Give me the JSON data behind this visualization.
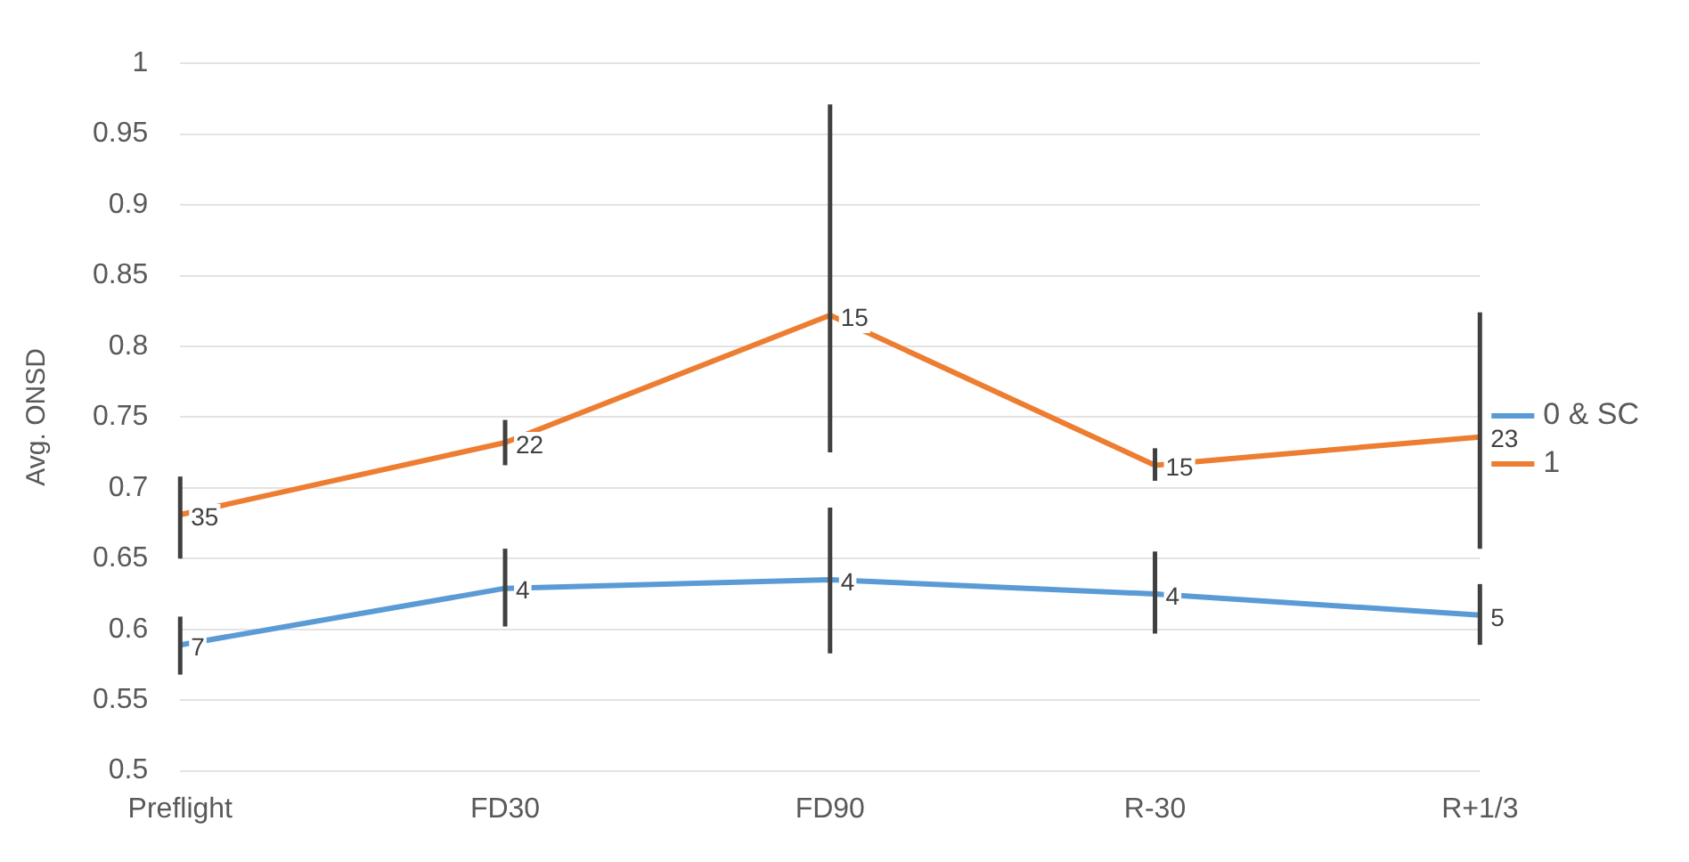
{
  "chart_data": {
    "type": "line",
    "ylabel": "Avg. ONSD",
    "categories": [
      "Preflight",
      "FD30",
      "FD90",
      "R-30",
      "R+1/3"
    ],
    "series": [
      {
        "name": "0 & SC",
        "color": "#5b9bd5",
        "values": [
          0.589,
          0.629,
          0.635,
          0.625,
          0.61
        ],
        "errors": [
          [
            0.568,
            0.609
          ],
          [
            0.602,
            0.657
          ],
          [
            0.583,
            0.686
          ],
          [
            0.597,
            0.655
          ],
          [
            0.589,
            0.632
          ]
        ]
      },
      {
        "name": "1",
        "color": "#ed7d31",
        "values": [
          0.681,
          0.732,
          0.822,
          0.716,
          0.736
        ],
        "errors": [
          [
            0.65,
            0.708
          ],
          [
            0.716,
            0.748
          ],
          [
            0.725,
            0.971
          ],
          [
            0.705,
            0.728
          ],
          [
            0.657,
            0.824
          ]
        ]
      }
    ],
    "annotations": [
      {
        "text": "7",
        "x": "Preflight",
        "y": 0.589
      },
      {
        "text": "4",
        "x": "FD30",
        "y": 0.629
      },
      {
        "text": "4",
        "x": "FD90",
        "y": 0.635
      },
      {
        "text": "4",
        "x": "R-30",
        "y": 0.625
      },
      {
        "text": "5",
        "x": "R+1/3",
        "y": 0.61
      },
      {
        "text": "35",
        "x": "Preflight",
        "y": 0.681
      },
      {
        "text": "22",
        "x": "FD30",
        "y": 0.732
      },
      {
        "text": "15",
        "x": "FD90",
        "y": 0.822
      },
      {
        "text": "15",
        "x": "R-30",
        "y": 0.716
      },
      {
        "text": "23",
        "x": "R+1/3",
        "y": 0.736
      }
    ],
    "ylim": [
      0.5,
      1
    ],
    "yticks": [
      0.5,
      0.55,
      0.6,
      0.65,
      0.7,
      0.75,
      0.8,
      0.85,
      0.9,
      0.95,
      1
    ],
    "grid": "y",
    "legend": "right",
    "marker": "none",
    "line_style": "solid"
  }
}
